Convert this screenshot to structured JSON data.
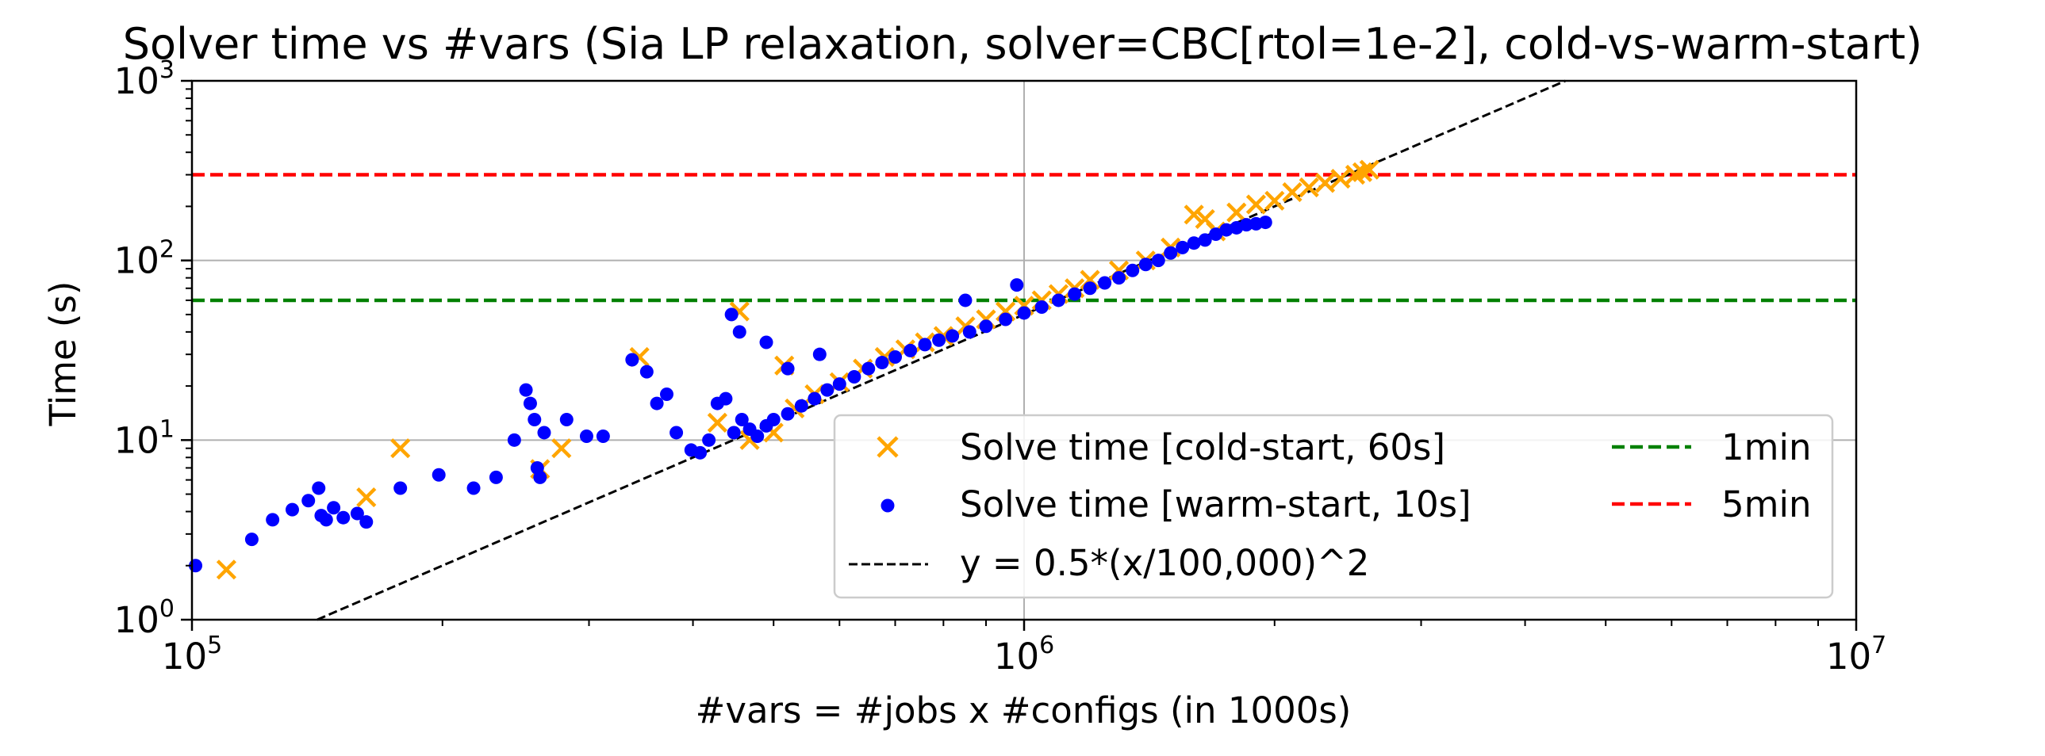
{
  "chart_data": {
    "type": "scatter",
    "title": "Solver time vs #vars (Sia LP relaxation, solver=CBC[rtol=1e-2], cold-vs-warm-start)",
    "xlabel": "#vars = #jobs x #configs (in 1000s)",
    "ylabel": "Time (s)",
    "xscale": "log",
    "yscale": "log",
    "xlim": [
      100000,
      10000000
    ],
    "ylim": [
      1,
      1000
    ],
    "x_ticks": [
      {
        "base": "10",
        "exp": "5",
        "value": 100000
      },
      {
        "base": "10",
        "exp": "6",
        "value": 1000000
      },
      {
        "base": "10",
        "exp": "7",
        "value": 10000000
      }
    ],
    "y_ticks": [
      {
        "base": "10",
        "exp": "0",
        "value": 1
      },
      {
        "base": "10",
        "exp": "1",
        "value": 10
      },
      {
        "base": "10",
        "exp": "2",
        "value": 100
      },
      {
        "base": "10",
        "exp": "3",
        "value": 1000
      }
    ],
    "grid": "major",
    "legend_position": "lower-right",
    "legend": {
      "cold": "Solve time [cold-start, 60s]",
      "warm": "Solve time [warm-start, 10s]",
      "fit": "y = 0.5*(x/100,000)^2",
      "min1": "1min",
      "min5": "5min"
    },
    "colors": {
      "cold": "#ffa500",
      "warm": "#0000ff",
      "fit": "#000000",
      "min1": "#008000",
      "min5": "#ff0000",
      "grid": "#b0b0b0"
    },
    "reference_lines": [
      {
        "name": "1min",
        "y": 60,
        "style": "dashed",
        "color": "#008000"
      },
      {
        "name": "5min",
        "y": 300,
        "style": "dashed",
        "color": "#ff0000"
      },
      {
        "name": "y = 0.5*(x/100,000)^2",
        "formula": "0.5*(x/100000)^2",
        "style": "dashed",
        "color": "#000000"
      }
    ],
    "series": [
      {
        "name": "Solve time [cold-start, 60s]",
        "marker": "x",
        "color": "#ffa500",
        "x": [
          110000,
          162000,
          178000,
          262000,
          278000,
          345000,
          428000,
          455000,
          468000,
          515000,
          500000,
          530000,
          560000,
          600000,
          640000,
          680000,
          720000,
          760000,
          800000,
          850000,
          900000,
          950000,
          1000000,
          1050000,
          1100000,
          1150000,
          1200000,
          1300000,
          1400000,
          1500000,
          1600000,
          1650000,
          1700000,
          1800000,
          1900000,
          2000000,
          2100000,
          2200000,
          2300000,
          2400000,
          2500000,
          2550000,
          2600000
        ],
        "y": [
          1.9,
          4.8,
          9.0,
          6.9,
          9.0,
          29.0,
          12.5,
          52.0,
          10.0,
          26.0,
          11.0,
          15.0,
          18.0,
          21.0,
          25.0,
          29.0,
          32.0,
          35.0,
          38.0,
          43.0,
          47.0,
          52.0,
          56.0,
          60.0,
          65.0,
          70.0,
          78.0,
          88.0,
          100.0,
          118.0,
          180.0,
          170.0,
          145.0,
          185.0,
          205.0,
          215.0,
          240.0,
          255.0,
          270.0,
          285.0,
          300.0,
          310.0,
          320.0
        ]
      },
      {
        "name": "Solve time [warm-start, 10s]",
        "marker": "o",
        "color": "#0000ff",
        "x": [
          101000,
          118000,
          125000,
          132000,
          138000,
          142000,
          143000,
          145000,
          148000,
          152000,
          158000,
          162000,
          178000,
          198000,
          218000,
          232000,
          244000,
          252000,
          255000,
          258000,
          260000,
          262000,
          265000,
          282000,
          298000,
          312000,
          338000,
          352000,
          362000,
          372000,
          382000,
          398000,
          408000,
          418000,
          428000,
          438000,
          448000,
          458000,
          468000,
          478000,
          490000,
          500000,
          520000,
          540000,
          560000,
          580000,
          600000,
          625000,
          650000,
          675000,
          700000,
          730000,
          760000,
          790000,
          820000,
          860000,
          900000,
          950000,
          1000000,
          1050000,
          1100000,
          1150000,
          1200000,
          1250000,
          1300000,
          1350000,
          1400000,
          1450000,
          1500000,
          1550000,
          1600000,
          1650000,
          1700000,
          1750000,
          1800000,
          1850000,
          1900000,
          1950000,
          850000,
          980000,
          445000,
          455000,
          490000,
          520000,
          568000
        ],
        "y": [
          2.0,
          2.8,
          3.6,
          4.1,
          4.6,
          5.4,
          3.8,
          3.6,
          4.2,
          3.7,
          3.9,
          3.5,
          5.4,
          6.4,
          5.4,
          6.2,
          10.0,
          19.0,
          16.0,
          13.0,
          7.0,
          6.2,
          11.0,
          13.0,
          10.5,
          10.5,
          28.0,
          24.0,
          16.0,
          18.0,
          11.0,
          8.8,
          8.5,
          10.0,
          16.0,
          17.0,
          11.0,
          13.0,
          11.5,
          10.5,
          12.0,
          13.0,
          14.0,
          15.5,
          17.0,
          19.0,
          20.5,
          22.5,
          25.0,
          27.0,
          29.0,
          31.5,
          34.0,
          36.0,
          38.0,
          40.0,
          43.0,
          47.0,
          51.0,
          55.0,
          60.0,
          65.0,
          70.0,
          75.0,
          80.0,
          88.0,
          95.0,
          100.0,
          110.0,
          118.0,
          125.0,
          130.0,
          140.0,
          148.0,
          152.0,
          158.0,
          160.0,
          163.0,
          60.0,
          73.0,
          50.0,
          40.0,
          35.0,
          25.0,
          30.0
        ]
      }
    ]
  }
}
